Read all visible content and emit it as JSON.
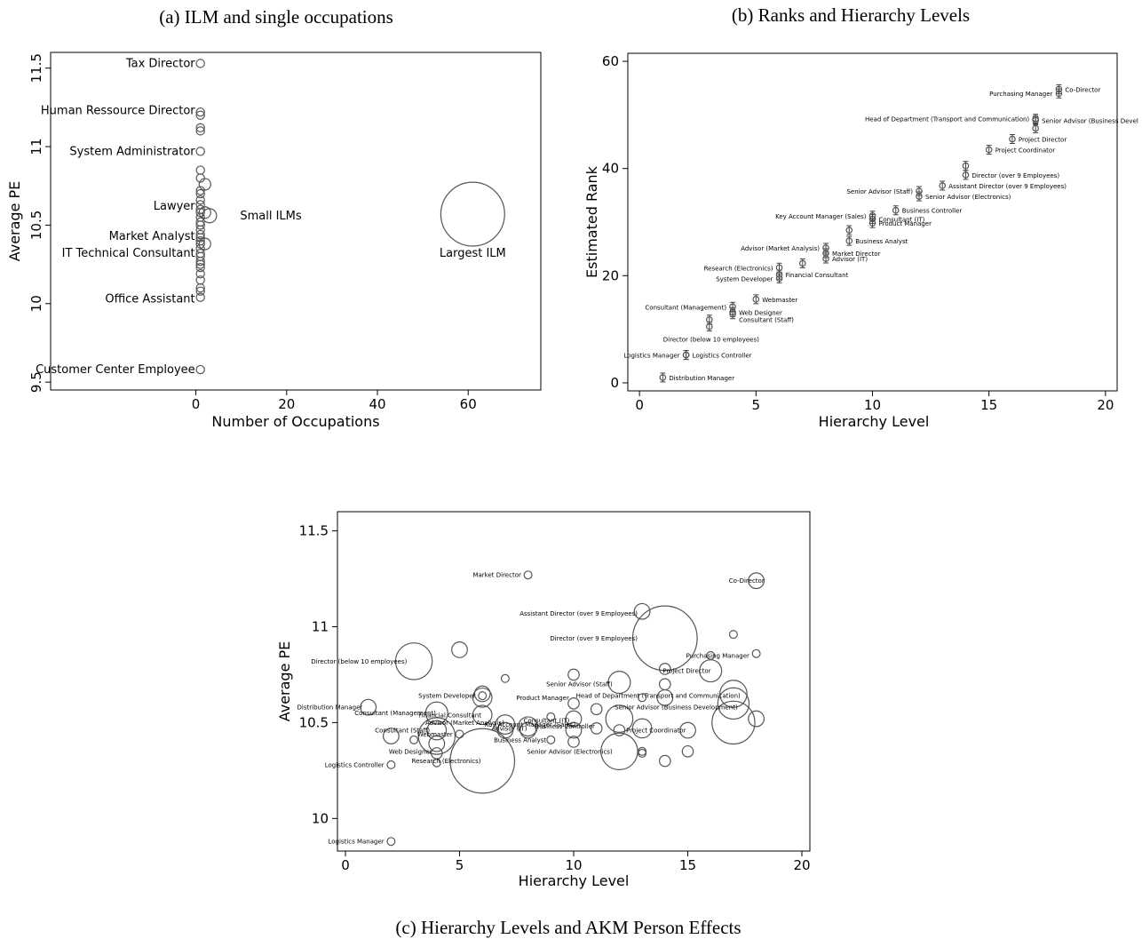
{
  "captions": {
    "a": "(a) ILM and single occupations",
    "b": "(b) Ranks and Hierarchy Levels",
    "c": "(c) Hierarchy Levels and AKM Person Effects"
  },
  "chart_data": [
    {
      "id": "a",
      "type": "scatter",
      "xlabel": "Number of Occupations",
      "ylabel": "Average PE",
      "xticks": [
        "0",
        "20",
        "40",
        "60"
      ],
      "yticks": [
        "9.5",
        "10",
        "10.5",
        "11",
        "11.5"
      ],
      "xlim": [
        -32,
        76
      ],
      "ylim": [
        9.45,
        11.6
      ],
      "points": [
        {
          "x": 1,
          "y": 11.53,
          "s": 1
        },
        {
          "x": 1,
          "y": 11.22,
          "s": 1
        },
        {
          "x": 1,
          "y": 11.2,
          "s": 1
        },
        {
          "x": 1,
          "y": 11.12,
          "s": 1
        },
        {
          "x": 1,
          "y": 11.1,
          "s": 1
        },
        {
          "x": 1,
          "y": 10.97,
          "s": 1
        },
        {
          "x": 1,
          "y": 10.85,
          "s": 1
        },
        {
          "x": 1,
          "y": 10.8,
          "s": 1
        },
        {
          "x": 1,
          "y": 10.72,
          "s": 1
        },
        {
          "x": 1,
          "y": 10.7,
          "s": 1
        },
        {
          "x": 1,
          "y": 10.66,
          "s": 1
        },
        {
          "x": 1,
          "y": 10.63,
          "s": 1
        },
        {
          "x": 1,
          "y": 10.6,
          "s": 1
        },
        {
          "x": 1,
          "y": 10.58,
          "s": 1
        },
        {
          "x": 1,
          "y": 10.55,
          "s": 1
        },
        {
          "x": 1,
          "y": 10.52,
          "s": 1
        },
        {
          "x": 1,
          "y": 10.5,
          "s": 1
        },
        {
          "x": 1,
          "y": 10.47,
          "s": 1
        },
        {
          "x": 1,
          "y": 10.44,
          "s": 1
        },
        {
          "x": 1,
          "y": 10.42,
          "s": 1
        },
        {
          "x": 1,
          "y": 10.4,
          "s": 1
        },
        {
          "x": 1,
          "y": 10.38,
          "s": 1
        },
        {
          "x": 1,
          "y": 10.35,
          "s": 1
        },
        {
          "x": 1,
          "y": 10.32,
          "s": 1
        },
        {
          "x": 1,
          "y": 10.3,
          "s": 1
        },
        {
          "x": 1,
          "y": 10.27,
          "s": 1
        },
        {
          "x": 1,
          "y": 10.25,
          "s": 1
        },
        {
          "x": 1,
          "y": 10.23,
          "s": 1
        },
        {
          "x": 1,
          "y": 10.19,
          "s": 1
        },
        {
          "x": 1,
          "y": 10.15,
          "s": 1
        },
        {
          "x": 1,
          "y": 10.1,
          "s": 1
        },
        {
          "x": 1,
          "y": 10.08,
          "s": 1
        },
        {
          "x": 1,
          "y": 10.04,
          "s": 1
        },
        {
          "x": 1,
          "y": 9.58,
          "s": 1
        },
        {
          "x": 2,
          "y": 10.76,
          "s": 2
        },
        {
          "x": 2,
          "y": 10.58,
          "s": 2
        },
        {
          "x": 2,
          "y": 10.38,
          "s": 2
        },
        {
          "x": 3,
          "y": 10.56,
          "s": 3
        },
        {
          "x": 61,
          "y": 10.57,
          "s": 61
        }
      ],
      "labels": [
        {
          "text": "Tax Director",
          "y": 11.53
        },
        {
          "text": "Human Ressource Director",
          "y": 11.23
        },
        {
          "text": "System Administrator",
          "y": 10.97
        },
        {
          "text": "Lawyer",
          "y": 10.62
        },
        {
          "text": "Market Analyst",
          "y": 10.43
        },
        {
          "text": "IT Technical Consultant",
          "y": 10.32
        },
        {
          "text": "Office Assistant",
          "y": 10.03
        },
        {
          "text": "Customer Center Employee",
          "y": 9.58
        }
      ],
      "annotations": [
        {
          "text": "Small ILMs",
          "x": 7,
          "y": 10.56
        },
        {
          "text": "Largest ILM",
          "x": 61,
          "y": 10.32
        }
      ]
    },
    {
      "id": "b",
      "type": "scatter",
      "xlabel": "Hierarchy Level",
      "ylabel": "Estimated Rank",
      "xticks": [
        "0",
        "5",
        "10",
        "15",
        "20"
      ],
      "yticks": [
        "0",
        "20",
        "40",
        "60"
      ],
      "xlim": [
        -0.5,
        20.5
      ],
      "ylim": [
        -1.5,
        61.5
      ],
      "points": [
        {
          "x": 1,
          "y": 1,
          "label": "Distribution Manager",
          "side": "right"
        },
        {
          "x": 2,
          "y": 5.2,
          "label": "Logistics Manager",
          "side": "left"
        },
        {
          "x": 2,
          "y": 5.2,
          "label": "Logistics Controller",
          "side": "right"
        },
        {
          "x": 3,
          "y": 10.5,
          "label": "Director (below 10 employees)",
          "side": "below"
        },
        {
          "x": 3,
          "y": 11.8,
          "label": "",
          "side": "none"
        },
        {
          "x": 4,
          "y": 13.2,
          "label": "Web Designer",
          "side": "right"
        },
        {
          "x": 4,
          "y": 14.2,
          "label": "Consultant (Management)",
          "side": "left"
        },
        {
          "x": 4,
          "y": 12.8,
          "label": "Consultant (Staff)",
          "side": "belowright"
        },
        {
          "x": 5,
          "y": 15.6,
          "label": "Webmaster",
          "side": "right"
        },
        {
          "x": 6,
          "y": 19.5,
          "label": "System Developer",
          "side": "left"
        },
        {
          "x": 6,
          "y": 20.2,
          "label": "Financial Consultant",
          "side": "right"
        },
        {
          "x": 6,
          "y": 21.5,
          "label": "Research (Electronics)",
          "side": "left"
        },
        {
          "x": 7,
          "y": 22.3,
          "label": "",
          "side": "none"
        },
        {
          "x": 8,
          "y": 23.2,
          "label": "Advisor (IT)",
          "side": "right"
        },
        {
          "x": 8,
          "y": 24.2,
          "label": "Market Director",
          "side": "right"
        },
        {
          "x": 8,
          "y": 25.2,
          "label": "Advisor (Market Analysis)",
          "side": "left"
        },
        {
          "x": 9,
          "y": 26.5,
          "label": "Business Analyst",
          "side": "right"
        },
        {
          "x": 9,
          "y": 28.5,
          "label": "",
          "side": "none"
        },
        {
          "x": 10,
          "y": 29.8,
          "label": "Product Manager",
          "side": "right"
        },
        {
          "x": 10,
          "y": 30.6,
          "label": "Consultant (IT)",
          "side": "right"
        },
        {
          "x": 10,
          "y": 31.2,
          "label": "Key Account Manager (Sales)",
          "side": "left"
        },
        {
          "x": 11,
          "y": 32.2,
          "label": "Business Controller",
          "side": "right"
        },
        {
          "x": 12,
          "y": 34.8,
          "label": "Senior Advisor (Electronics)",
          "side": "right"
        },
        {
          "x": 12,
          "y": 35.8,
          "label": "Senior Advisor (Staff)",
          "side": "left"
        },
        {
          "x": 13,
          "y": 36.8,
          "label": "Assistant Director (over 9 Employees)",
          "side": "right"
        },
        {
          "x": 14,
          "y": 38.8,
          "label": "Director (over 9 Employees)",
          "side": "right"
        },
        {
          "x": 14,
          "y": 40.5,
          "label": "",
          "side": "none"
        },
        {
          "x": 15,
          "y": 43.5,
          "label": "Project Coordinator",
          "side": "right"
        },
        {
          "x": 16,
          "y": 45.5,
          "label": "Project Director",
          "side": "right"
        },
        {
          "x": 17,
          "y": 47.5,
          "label": "",
          "side": "none"
        },
        {
          "x": 17,
          "y": 49.0,
          "label": "Senior Advisor (Business Devel",
          "side": "right"
        },
        {
          "x": 17,
          "y": 49.3,
          "label": "Head of Department (Transport and Communication)",
          "side": "left"
        },
        {
          "x": 18,
          "y": 54.0,
          "label": "Purchasing Manager",
          "side": "left"
        },
        {
          "x": 18,
          "y": 54.8,
          "label": "Co-Director",
          "side": "right"
        }
      ]
    },
    {
      "id": "c",
      "type": "scatter",
      "xlabel": "Hierarchy Level",
      "ylabel": "Average PE",
      "xticks": [
        "0",
        "5",
        "10",
        "15",
        "20"
      ],
      "yticks": [
        "10",
        "10.5",
        "11",
        "11.5"
      ],
      "xlim": [
        -0.35,
        20.35
      ],
      "ylim": [
        9.83,
        11.6
      ],
      "points": [
        {
          "x": 1,
          "y": 10.58,
          "s": 4
        },
        {
          "x": 2,
          "y": 10.43,
          "s": 4
        },
        {
          "x": 2,
          "y": 10.28,
          "s": 1
        },
        {
          "x": 2,
          "y": 9.88,
          "s": 1
        },
        {
          "x": 3,
          "y": 10.82,
          "s": 22
        },
        {
          "x": 3,
          "y": 10.41,
          "s": 1
        },
        {
          "x": 4,
          "y": 10.55,
          "s": 8
        },
        {
          "x": 4,
          "y": 10.46,
          "s": 6
        },
        {
          "x": 4,
          "y": 10.43,
          "s": 22
        },
        {
          "x": 4,
          "y": 10.39,
          "s": 4
        },
        {
          "x": 4,
          "y": 10.34,
          "s": 2
        },
        {
          "x": 4,
          "y": 10.29,
          "s": 1
        },
        {
          "x": 5,
          "y": 10.88,
          "s": 4
        },
        {
          "x": 5,
          "y": 10.44,
          "s": 1
        },
        {
          "x": 6,
          "y": 10.65,
          "s": 4
        },
        {
          "x": 6,
          "y": 10.63,
          "s": 6
        },
        {
          "x": 6,
          "y": 10.64,
          "s": 1
        },
        {
          "x": 6,
          "y": 10.54,
          "s": 6
        },
        {
          "x": 6,
          "y": 10.3,
          "s": 68
        },
        {
          "x": 7,
          "y": 10.73,
          "s": 1
        },
        {
          "x": 7,
          "y": 10.49,
          "s": 6
        },
        {
          "x": 7,
          "y": 10.46,
          "s": 4
        },
        {
          "x": 8,
          "y": 11.27,
          "s": 1
        },
        {
          "x": 8,
          "y": 10.48,
          "s": 6
        },
        {
          "x": 8,
          "y": 10.46,
          "s": 4
        },
        {
          "x": 9,
          "y": 10.53,
          "s": 1
        },
        {
          "x": 9,
          "y": 10.41,
          "s": 1
        },
        {
          "x": 10,
          "y": 10.75,
          "s": 2
        },
        {
          "x": 10,
          "y": 10.6,
          "s": 2
        },
        {
          "x": 10,
          "y": 10.52,
          "s": 4
        },
        {
          "x": 10,
          "y": 10.46,
          "s": 4
        },
        {
          "x": 10,
          "y": 10.4,
          "s": 2
        },
        {
          "x": 11,
          "y": 10.57,
          "s": 2
        },
        {
          "x": 11,
          "y": 10.47,
          "s": 2
        },
        {
          "x": 12,
          "y": 10.71,
          "s": 8
        },
        {
          "x": 12,
          "y": 10.52,
          "s": 12
        },
        {
          "x": 12,
          "y": 10.46,
          "s": 2
        },
        {
          "x": 12,
          "y": 10.35,
          "s": 22
        },
        {
          "x": 13,
          "y": 11.08,
          "s": 4
        },
        {
          "x": 13,
          "y": 10.63,
          "s": 1
        },
        {
          "x": 13,
          "y": 10.47,
          "s": 6
        },
        {
          "x": 13,
          "y": 10.35,
          "s": 1
        },
        {
          "x": 13,
          "y": 10.34,
          "s": 1
        },
        {
          "x": 14,
          "y": 10.94,
          "s": 68
        },
        {
          "x": 14,
          "y": 10.78,
          "s": 2
        },
        {
          "x": 14,
          "y": 10.7,
          "s": 2
        },
        {
          "x": 14,
          "y": 10.63,
          "s": 4
        },
        {
          "x": 14,
          "y": 10.3,
          "s": 2
        },
        {
          "x": 15,
          "y": 10.46,
          "s": 4
        },
        {
          "x": 15,
          "y": 10.35,
          "s": 2
        },
        {
          "x": 16,
          "y": 10.85,
          "s": 1
        },
        {
          "x": 16,
          "y": 10.77,
          "s": 8
        },
        {
          "x": 17,
          "y": 10.96,
          "s": 1
        },
        {
          "x": 17,
          "y": 10.65,
          "s": 12
        },
        {
          "x": 17,
          "y": 10.6,
          "s": 16
        },
        {
          "x": 17,
          "y": 10.5,
          "s": 30
        },
        {
          "x": 18,
          "y": 11.24,
          "s": 4
        },
        {
          "x": 18,
          "y": 10.86,
          "s": 1
        },
        {
          "x": 18,
          "y": 10.52,
          "s": 4
        }
      ],
      "labels": [
        {
          "text": "Market Director",
          "x": 7.7,
          "y": 11.27,
          "anchor": "end"
        },
        {
          "text": "Co-Director",
          "x": 16.8,
          "y": 11.24,
          "anchor": "start"
        },
        {
          "text": "Assistant Director (over 9 Employees)",
          "x": 12.8,
          "y": 11.07,
          "anchor": "end"
        },
        {
          "text": "Director (over 9 Employees)",
          "x": 12.8,
          "y": 10.94,
          "anchor": "end"
        },
        {
          "text": "Director (below 10 employees)",
          "x": 2.7,
          "y": 10.82,
          "anchor": "end"
        },
        {
          "text": "Purchasing Manager",
          "x": 17.7,
          "y": 10.85,
          "anchor": "end"
        },
        {
          "text": "Project Director",
          "x": 13.9,
          "y": 10.77,
          "anchor": "start"
        },
        {
          "text": "Senior Advisor (Staff)",
          "x": 11.7,
          "y": 10.7,
          "anchor": "end"
        },
        {
          "text": "System Developer",
          "x": 5.7,
          "y": 10.64,
          "anchor": "end"
        },
        {
          "text": "Product Manager",
          "x": 9.8,
          "y": 10.63,
          "anchor": "end"
        },
        {
          "text": "Head of Department (Transport and Communication)",
          "x": 10.1,
          "y": 10.64,
          "anchor": "start"
        },
        {
          "text": "Distribution Manager",
          "x": 0.75,
          "y": 10.58,
          "anchor": "end"
        },
        {
          "text": "Senior Advisor (Business Development)",
          "x": 11.8,
          "y": 10.58,
          "anchor": "start"
        },
        {
          "text": "Consultant (Management)",
          "x": 0.4,
          "y": 10.55,
          "anchor": "start"
        },
        {
          "text": "Financial Consultant",
          "x": 3.2,
          "y": 10.54,
          "anchor": "start"
        },
        {
          "text": "Advisor (Market Analysis)",
          "x": 3.5,
          "y": 10.5,
          "anchor": "start"
        },
        {
          "text": "Consultant (IT)",
          "x": 7.8,
          "y": 10.51,
          "anchor": "start"
        },
        {
          "text": "Key Account Manager (Sales)",
          "x": 6.1,
          "y": 10.49,
          "anchor": "start"
        },
        {
          "text": "Business Controller",
          "x": 8.3,
          "y": 10.48,
          "anchor": "start"
        },
        {
          "text": "Advisor (IT)",
          "x": 6.4,
          "y": 10.47,
          "anchor": "start"
        },
        {
          "text": "Consultant (Staff)",
          "x": 3.7,
          "y": 10.46,
          "anchor": "end"
        },
        {
          "text": "Project Coordinator",
          "x": 12.3,
          "y": 10.46,
          "anchor": "start"
        },
        {
          "text": "Webmaster",
          "x": 4.7,
          "y": 10.44,
          "anchor": "end"
        },
        {
          "text": "Business Analyst",
          "x": 8.8,
          "y": 10.41,
          "anchor": "end"
        },
        {
          "text": "Web Designer",
          "x": 3.8,
          "y": 10.35,
          "anchor": "end"
        },
        {
          "text": "Senior Advisor (Electronics)",
          "x": 11.7,
          "y": 10.35,
          "anchor": "end"
        },
        {
          "text": "Research (Electronics)",
          "x": 2.9,
          "y": 10.3,
          "anchor": "start"
        },
        {
          "text": "Logistics Controller",
          "x": 1.7,
          "y": 10.28,
          "anchor": "end"
        },
        {
          "text": "Logistics Manager",
          "x": 1.7,
          "y": 9.88,
          "anchor": "end"
        }
      ]
    }
  ]
}
